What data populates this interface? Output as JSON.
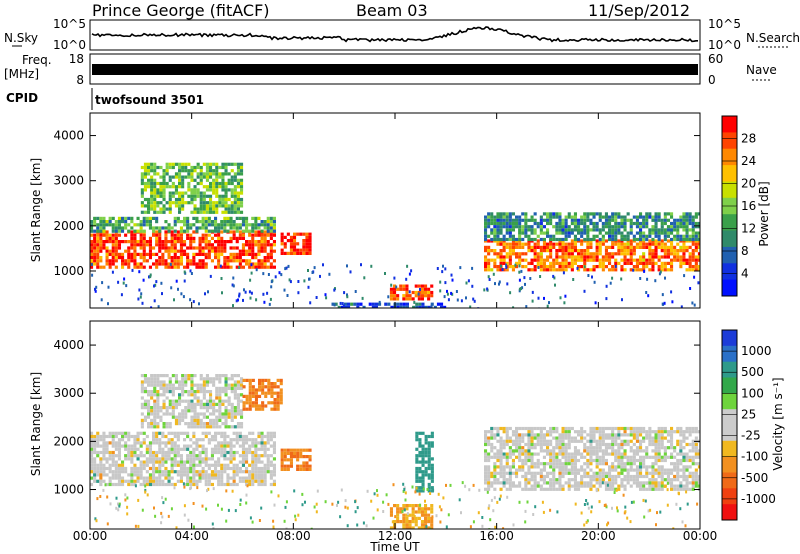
{
  "header": {
    "title": "Prince George (fitACF)",
    "beam": "Beam 03",
    "date": "11/Sep/2012"
  },
  "strips": {
    "nsky": {
      "label": "N.Sky",
      "ticks": [
        "10^5",
        "10^0"
      ]
    },
    "nsearch": {
      "label": "N.Search",
      "ticks": [
        "10^5",
        "10^0"
      ]
    },
    "freq": {
      "label_line1": "Freq.",
      "label_line2": "[MHz]",
      "ticks": [
        "18",
        "8"
      ]
    },
    "nave": {
      "label": "Nave",
      "ticks": [
        "60",
        "0"
      ]
    },
    "cpid": {
      "label": "CPID",
      "text": "twofsound 3501"
    }
  },
  "axes": {
    "xlabel": "Time UT",
    "xticks": [
      "00:00",
      "04:00",
      "08:00",
      "12:00",
      "16:00",
      "20:00",
      "00:00"
    ],
    "ylabel": "Slant Range [km]",
    "yticks": [
      "1000",
      "2000",
      "3000",
      "4000"
    ],
    "yrange_km": [
      180,
      4500
    ],
    "xrange_hours": [
      0,
      24
    ]
  },
  "colorbars": {
    "power": {
      "label": "Power [dB]",
      "ticks": [
        "28",
        "24",
        "20",
        "16",
        "12",
        "8",
        "4"
      ],
      "colors": [
        "#ff0000",
        "#ff4400",
        "#ff8800",
        "#ffc000",
        "#c8e000",
        "#7fd04a",
        "#3aa04a",
        "#2f8a6a",
        "#2060b0",
        "#1030e0",
        "#0010ff"
      ]
    },
    "velocity": {
      "label": "Velocity [m s⁻¹]",
      "ticks": [
        "1000",
        "500",
        "100",
        "25",
        "-25",
        "-100",
        "-500",
        "-1000"
      ],
      "colors": [
        "#1c3cd8",
        "#2a70c8",
        "#2e9a8a",
        "#32a84a",
        "#6ed43c",
        "#cccccc",
        "#cccccc",
        "#f0b820",
        "#f29020",
        "#f06a18",
        "#f04010",
        "#f01010"
      ]
    }
  },
  "chart_data": [
    {
      "type": "heatmap",
      "title": "Power [dB]",
      "xlabel": "Time UT",
      "ylabel": "Slant Range [km]",
      "xlim": [
        0,
        24
      ],
      "ylim": [
        180,
        4500
      ],
      "features": [
        {
          "t0": 0.0,
          "t1": 7.2,
          "r0": 1100,
          "r1": 1900,
          "power": 26
        },
        {
          "t0": 0.0,
          "t1": 7.2,
          "r0": 1900,
          "r1": 2200,
          "power": 12
        },
        {
          "t0": 2.0,
          "t1": 6.0,
          "r0": 2300,
          "r1": 3400,
          "power": 14
        },
        {
          "t0": 7.5,
          "t1": 8.6,
          "r0": 1400,
          "r1": 1850,
          "power": 28
        },
        {
          "t0": 9.5,
          "t1": 14.0,
          "r0": 200,
          "r1": 300,
          "power": 6
        },
        {
          "t0": 11.8,
          "t1": 13.5,
          "r0": 400,
          "r1": 700,
          "power": 26
        },
        {
          "t0": 15.5,
          "t1": 24.0,
          "r0": 1000,
          "r1": 1700,
          "power": 24
        },
        {
          "t0": 15.5,
          "t1": 24.0,
          "r0": 1700,
          "r1": 2300,
          "power": 10
        }
      ]
    },
    {
      "type": "heatmap",
      "title": "Velocity [m s⁻¹]",
      "xlabel": "Time UT",
      "ylabel": "Slant Range [km]",
      "xlim": [
        0,
        24
      ],
      "ylim": [
        180,
        4500
      ],
      "features": [
        {
          "t0": 0.0,
          "t1": 7.2,
          "r0": 1100,
          "r1": 2200,
          "velocity": 0
        },
        {
          "t0": 2.0,
          "t1": 6.0,
          "r0": 2300,
          "r1": 3400,
          "velocity": 0
        },
        {
          "t0": 6.0,
          "t1": 7.5,
          "r0": 2700,
          "r1": 3300,
          "velocity": -500
        },
        {
          "t0": 7.5,
          "t1": 8.6,
          "r0": 1400,
          "r1": 1850,
          "velocity": -500
        },
        {
          "t0": 12.8,
          "t1": 13.5,
          "r0": 1000,
          "r1": 2200,
          "velocity": 300
        },
        {
          "t0": 11.8,
          "t1": 13.5,
          "r0": 200,
          "r1": 700,
          "velocity": -100
        },
        {
          "t0": 15.5,
          "t1": 24.0,
          "r0": 1000,
          "r1": 2300,
          "velocity": 0
        }
      ]
    }
  ]
}
